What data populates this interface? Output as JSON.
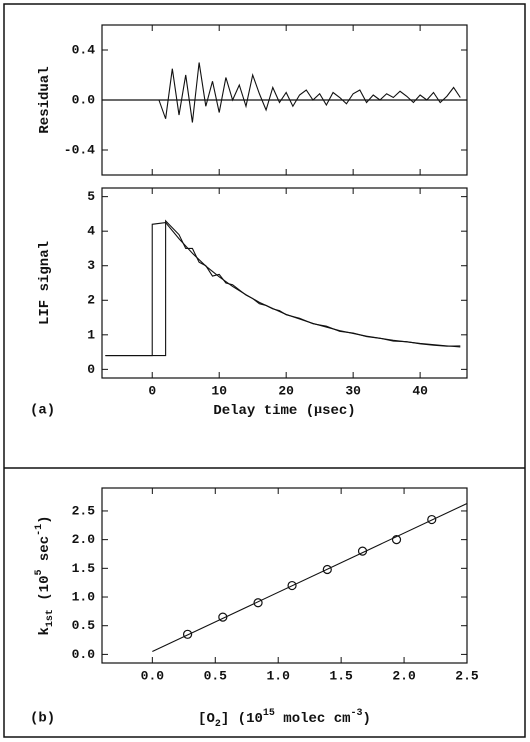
{
  "charts": [
    {
      "type": "line",
      "ylabel": [
        {
          "text": "Residual"
        }
      ],
      "xlim": [
        -7.5,
        47
      ],
      "xticks": [
        0,
        10,
        20,
        30,
        40
      ],
      "show_xtick_labels": false,
      "ylim": [
        -0.6,
        0.6
      ],
      "yticks": [
        0.4,
        {
          "value": 0,
          "label": "0.0"
        },
        -0.4
      ],
      "hline": 0,
      "series": [
        {
          "color": "#111111",
          "x": [
            -7,
            -6,
            -5,
            -4,
            -3,
            -2,
            -1,
            0,
            1,
            2,
            3,
            4,
            5,
            6,
            7,
            8,
            9,
            10,
            11,
            12,
            13,
            14,
            15,
            16,
            17,
            18,
            19,
            20,
            21,
            22,
            23,
            24,
            25,
            26,
            27,
            28,
            29,
            30,
            31,
            32,
            33,
            34,
            35,
            36,
            37,
            38,
            39,
            40,
            41,
            42,
            43,
            44,
            45,
            46
          ],
          "values": [
            0,
            0,
            0,
            0,
            0,
            0,
            0,
            0,
            0,
            -0.15,
            0.25,
            -0.12,
            0.2,
            -0.18,
            0.3,
            -0.05,
            0.15,
            -0.1,
            0.18,
            0,
            0.12,
            -0.05,
            0.2,
            0.05,
            -0.08,
            0.1,
            -0.02,
            0.06,
            -0.05,
            0.04,
            0.08,
            0,
            0.05,
            -0.04,
            0.06,
            0.02,
            -0.03,
            0.05,
            0.08,
            -0.02,
            0.04,
            0,
            0.05,
            0.02,
            0.07,
            0.03,
            -0.02,
            0.04,
            0,
            0.06,
            -0.02,
            0.03,
            0.1,
            0.02
          ]
        }
      ]
    },
    {
      "type": "line",
      "ylabel": [
        {
          "text": "LIF signal"
        }
      ],
      "xlabel": [
        {
          "text": "Delay time ("
        },
        {
          "text": "μ",
          "font": "serif"
        },
        {
          "text": "sec)"
        }
      ],
      "panel": "(a)",
      "xlim": [
        -7.5,
        47
      ],
      "xticks": [
        0,
        10,
        20,
        30,
        40
      ],
      "ylim": [
        -0.25,
        5.25
      ],
      "yticks": [
        0,
        1,
        2,
        3,
        4,
        5
      ],
      "series": [
        {
          "color": "#111111",
          "x": [
            -7,
            0,
            0,
            2,
            4,
            6,
            8,
            10,
            12,
            14,
            16,
            18,
            20,
            24,
            28,
            32,
            36,
            40,
            44,
            46
          ],
          "values": [
            0.4,
            0.4,
            4.2,
            4.25,
            3.78,
            3.36,
            2.99,
            2.68,
            2.4,
            2.16,
            1.94,
            1.76,
            1.59,
            1.33,
            1.12,
            0.96,
            0.84,
            0.75,
            0.68,
            0.65
          ]
        },
        {
          "color": "#111111",
          "x": [
            -7,
            2,
            2,
            3,
            4,
            5,
            6,
            7,
            8,
            9,
            10,
            11,
            12,
            13,
            14,
            15,
            16,
            17,
            18,
            19,
            20,
            22,
            24,
            26,
            28,
            30,
            32,
            34,
            36,
            38,
            40,
            42,
            44,
            46
          ],
          "values": [
            0.4,
            0.4,
            4.3,
            4.1,
            3.9,
            3.5,
            3.5,
            3.1,
            3.0,
            2.7,
            2.75,
            2.5,
            2.45,
            2.3,
            2.15,
            2.05,
            1.9,
            1.85,
            1.75,
            1.7,
            1.58,
            1.48,
            1.32,
            1.25,
            1.1,
            1.05,
            0.95,
            0.9,
            0.82,
            0.8,
            0.74,
            0.7,
            0.67,
            0.68
          ]
        }
      ]
    },
    {
      "type": "scatter",
      "panel": "(b)",
      "ylabel": [
        {
          "text": "k"
        },
        {
          "text": "1st",
          "shift": "sub"
        },
        {
          "text": " (10"
        },
        {
          "text": "5",
          "shift": "super"
        },
        {
          "text": " sec"
        },
        {
          "text": "-1",
          "shift": "super"
        },
        {
          "text": ")"
        }
      ],
      "xlabel": [
        {
          "text": "[O"
        },
        {
          "text": "2",
          "shift": "sub"
        },
        {
          "text": "] (10"
        },
        {
          "text": "15",
          "shift": "super"
        },
        {
          "text": " molec cm"
        },
        {
          "text": "-3",
          "shift": "super"
        },
        {
          "text": ")"
        }
      ],
      "xlim": [
        -0.4,
        2.5
      ],
      "xticks": [
        {
          "value": 0,
          "label": "0.0"
        },
        0.5,
        {
          "value": 1,
          "label": "1.0"
        },
        1.5,
        {
          "value": 2,
          "label": "2.0"
        },
        2.5
      ],
      "ylim": [
        -0.15,
        2.9
      ],
      "yticks": [
        {
          "value": 0,
          "label": "0.0"
        },
        0.5,
        {
          "value": 1,
          "label": "1.0"
        },
        1.5,
        {
          "value": 2,
          "label": "2.0"
        },
        2.5
      ],
      "series": [
        {
          "type": "scatter",
          "color": "#111111",
          "x": [
            0.28,
            0.56,
            0.84,
            1.11,
            1.39,
            1.67,
            1.94,
            2.22
          ],
          "values": [
            0.35,
            0.65,
            0.9,
            1.2,
            1.48,
            1.8,
            2.0,
            2.35
          ]
        },
        {
          "type": "line",
          "color": "#111111",
          "x": [
            0,
            2.5
          ],
          "values": [
            0.05,
            2.63
          ]
        }
      ]
    }
  ]
}
